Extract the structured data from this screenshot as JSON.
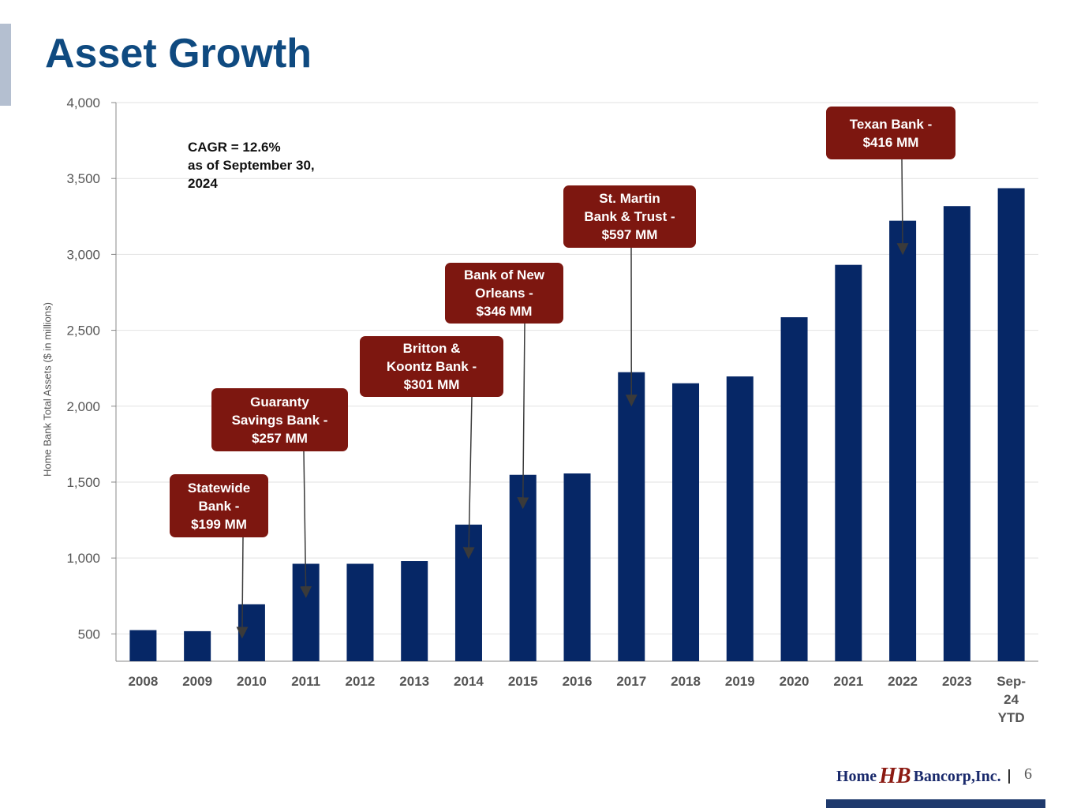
{
  "page": {
    "title": "Asset Growth",
    "cagr_lines": [
      "CAGR = 12.6%",
      "as of September 30,",
      "2024"
    ],
    "page_number": "6",
    "logo": {
      "word1": "Home",
      "mark": "HB",
      "word2": "Bancorp,Inc."
    }
  },
  "colors": {
    "bar": "#062766",
    "callout": "#7d1710",
    "title": "#0f4a80",
    "grid": "#e2e2e2"
  },
  "chart_data": {
    "type": "bar",
    "title": "Asset Growth",
    "xlabel": "",
    "ylabel": "Home Bank Total Assets  ($ in millions)",
    "ylim": [
      320,
      4000
    ],
    "yticks": [
      500,
      1000,
      1500,
      2000,
      2500,
      3000,
      3500,
      4000
    ],
    "ytick_labels": [
      "500",
      "1,000",
      "1,500",
      "2,000",
      "2,500",
      "3,000",
      "3,500",
      "4,000"
    ],
    "grid": true,
    "categories": [
      "2008",
      "2009",
      "2010",
      "2011",
      "2012",
      "2013",
      "2014",
      "2015",
      "2016",
      "2017",
      "2018",
      "2019",
      "2020",
      "2021",
      "2022",
      "2023",
      "Sep-24 YTD"
    ],
    "category_lines": [
      [
        "2008"
      ],
      [
        "2009"
      ],
      [
        "2010"
      ],
      [
        "2011"
      ],
      [
        "2012"
      ],
      [
        "2013"
      ],
      [
        "2014"
      ],
      [
        "2015"
      ],
      [
        "2016"
      ],
      [
        "2017"
      ],
      [
        "2018"
      ],
      [
        "2019"
      ],
      [
        "2020"
      ],
      [
        "2021"
      ],
      [
        "2022"
      ],
      [
        "2023"
      ],
      [
        "Sep-",
        "24",
        "YTD"
      ]
    ],
    "series": [
      {
        "name": "Home Bank Total Assets",
        "values": [
          525,
          518,
          695,
          962,
          962,
          980,
          1220,
          1548,
          1557,
          2224,
          2151,
          2196,
          2586,
          2931,
          3222,
          3318,
          3436
        ]
      }
    ],
    "annotations": [
      {
        "lines": [
          "Statewide",
          "Bank -",
          "$199 MM"
        ],
        "category": "2010"
      },
      {
        "lines": [
          "Guaranty",
          "Savings Bank -",
          "$257 MM"
        ],
        "category": "2011"
      },
      {
        "lines": [
          "Britton &",
          "Koontz Bank -",
          "$301 MM"
        ],
        "category": "2014"
      },
      {
        "lines": [
          "Bank of New",
          "Orleans -",
          "$346 MM"
        ],
        "category": "2015"
      },
      {
        "lines": [
          "St. Martin",
          "Bank & Trust -",
          "$597 MM"
        ],
        "category": "2017"
      },
      {
        "lines": [
          "Texan Bank -",
          "$416 MM"
        ],
        "category": "2022"
      }
    ]
  }
}
